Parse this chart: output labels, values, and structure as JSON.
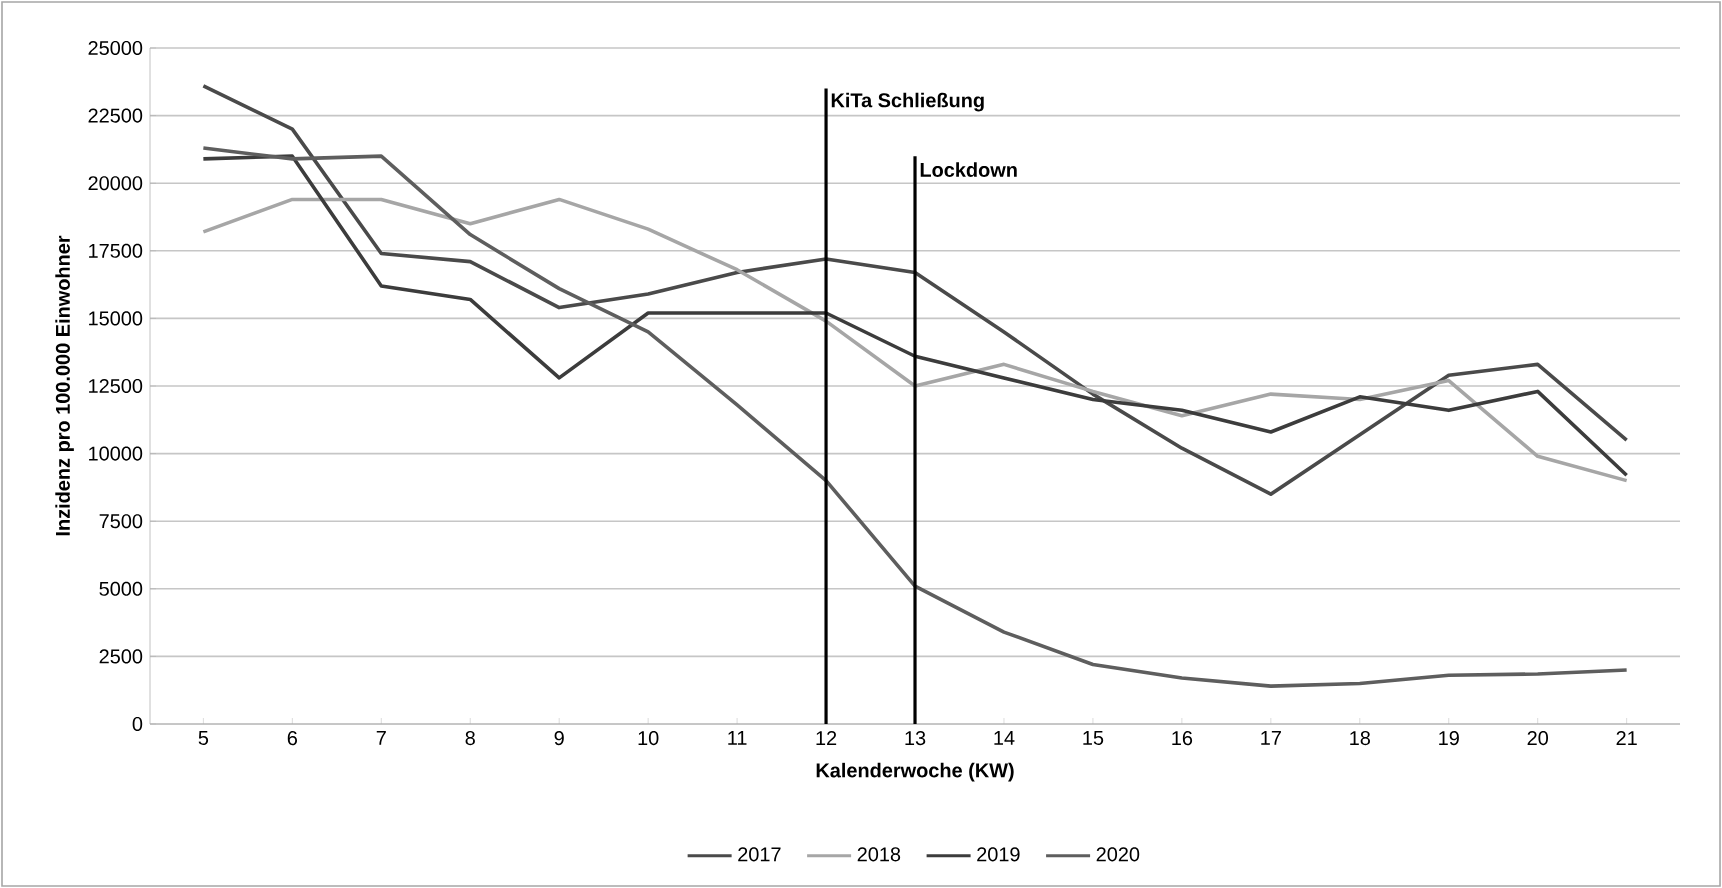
{
  "chart_data": {
    "type": "line",
    "xlabel": "Kalenderwoche (KW)",
    "ylabel": "Inzidenz pro 100.000 Einwohner",
    "x": [
      5,
      6,
      7,
      8,
      9,
      10,
      11,
      12,
      13,
      14,
      15,
      16,
      17,
      18,
      19,
      20,
      21
    ],
    "xlim": [
      4.4,
      21.6
    ],
    "xticks": [
      5,
      6,
      7,
      8,
      9,
      10,
      11,
      12,
      13,
      14,
      15,
      16,
      17,
      18,
      19,
      20,
      21
    ],
    "ylim": [
      0,
      25000
    ],
    "yticks": [
      0,
      2500,
      5000,
      7500,
      10000,
      12500,
      15000,
      17500,
      20000,
      22500,
      25000
    ],
    "grid": "y",
    "legend": "bottom",
    "marker": "none",
    "line_style": "solid",
    "series": [
      {
        "name": "2017",
        "color": "#4a4a4a",
        "values": [
          23600,
          22000,
          17400,
          17100,
          15400,
          15900,
          16700,
          17200,
          16700,
          14500,
          12200,
          10200,
          8500,
          10700,
          12900,
          13300,
          10500
        ]
      },
      {
        "name": "2018",
        "color": "#a6a6a6",
        "values": [
          18200,
          19400,
          19400,
          18500,
          19400,
          18300,
          16800,
          14900,
          12500,
          13300,
          12300,
          11400,
          12200,
          12000,
          12700,
          9900,
          9000
        ]
      },
      {
        "name": "2019",
        "color": "#3c3c3c",
        "values": [
          20900,
          21000,
          16200,
          15700,
          12800,
          15200,
          15200,
          15200,
          13600,
          12800,
          12000,
          11600,
          10800,
          12100,
          11600,
          12300,
          9200
        ]
      },
      {
        "name": "2020",
        "color": "#5e5e5e",
        "values": [
          21300,
          20900,
          21000,
          18100,
          16100,
          14500,
          11800,
          9000,
          5100,
          3400,
          2200,
          1700,
          1400,
          1500,
          1800,
          1850,
          2000
        ]
      }
    ],
    "ref_lines": [
      {
        "axis": "x",
        "value": 12,
        "label": "KiTa Schließung",
        "color": "#000000"
      },
      {
        "axis": "x",
        "value": 13,
        "label": "Lockdown",
        "color": "#000000"
      }
    ]
  }
}
